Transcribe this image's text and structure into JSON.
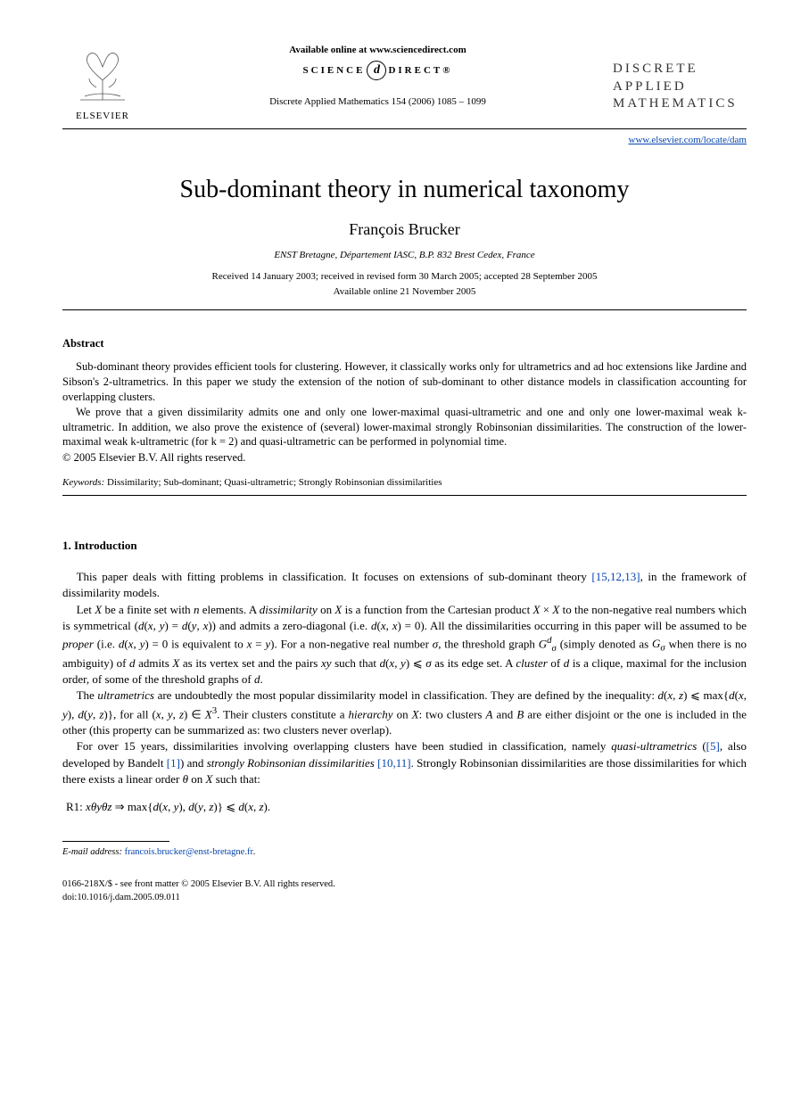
{
  "header": {
    "publisher": "ELSEVIER",
    "available_online": "Available online at www.sciencedirect.com",
    "science_direct_left": "SCIENCE",
    "science_direct_right": "DIRECT®",
    "citation": "Discrete Applied Mathematics 154 (2006) 1085 – 1099",
    "journal_name_l1": "DISCRETE",
    "journal_name_l2": "APPLIED",
    "journal_name_l3": "MATHEMATICS",
    "journal_url": "www.elsevier.com/locate/dam"
  },
  "article": {
    "title": "Sub-dominant theory in numerical taxonomy",
    "author": "François Brucker",
    "affiliation": "ENST Bretagne, Département IASC, B.P. 832 Brest Cedex, France",
    "dates_line1": "Received 14 January 2003; received in revised form 30 March 2005; accepted 28 September 2005",
    "dates_line2": "Available online 21 November 2005"
  },
  "abstract": {
    "heading": "Abstract",
    "p1": "Sub-dominant theory provides efficient tools for clustering. However, it classically works only for ultrametrics and ad hoc extensions like Jardine and Sibson's 2-ultrametrics. In this paper we study the extension of the notion of sub-dominant to other distance models in classification accounting for overlapping clusters.",
    "p2": "We prove that a given dissimilarity admits one and only one lower-maximal quasi-ultrametric and one and only one lower-maximal weak k-ultrametric. In addition, we also prove the existence of (several) lower-maximal strongly Robinsonian dissimilarities. The construction of the lower-maximal weak k-ultrametric (for k = 2) and quasi-ultrametric can be performed in polynomial time.",
    "copyright": "© 2005 Elsevier B.V. All rights reserved."
  },
  "keywords": {
    "label": "Keywords:",
    "text": " Dissimilarity; Sub-dominant; Quasi-ultrametric; Strongly Robinsonian dissimilarities"
  },
  "section1": {
    "heading": "1.  Introduction",
    "p1_a": "This   paper deals with fitting problems in classification. It focuses on extensions of sub-dominant theory ",
    "p1_refs": "[15,12,13]",
    "p1_b": ", in the framework of dissimilarity models.",
    "p2_html": "Let <i>X</i> be a finite set with <i>n</i> elements. A <i>dissimilarity</i> on <i>X</i> is a function from the Cartesian product <i>X</i> × <i>X</i> to the non-negative real numbers which is symmetrical (<i>d</i>(<i>x</i>, <i>y</i>) = <i>d</i>(<i>y</i>, <i>x</i>)) and admits a zero-diagonal (i.e. <i>d</i>(<i>x</i>, <i>x</i>) = 0). All the dissimilarities occurring in this paper will be assumed to be <i>proper</i> (i.e. <i>d</i>(<i>x</i>, <i>y</i>) = 0 is equivalent to <i>x</i> = <i>y</i>). For a non-negative real number <i>σ</i>, the threshold graph <i>G</i><sup><i>d</i></sup><sub><i>σ</i></sub> (simply denoted as <i>G<sub>σ</sub></i> when there is no ambiguity) of <i>d</i> admits <i>X</i> as its vertex set and the pairs <i>xy</i> such that <i>d</i>(<i>x</i>, <i>y</i>) ⩽ <i>σ</i> as its edge set. A <i>cluster</i> of <i>d</i> is a clique, maximal for the inclusion order, of some of the threshold graphs of <i>d</i>.",
    "p3_html": "The <i>ultrametrics</i> are undoubtedly the most popular dissimilarity model in classification. They are defined by the inequality: <i>d</i>(<i>x</i>, <i>z</i>) ⩽ max{<i>d</i>(<i>x</i>, <i>y</i>), <i>d</i>(<i>y</i>, <i>z</i>)}, for all (<i>x</i>, <i>y</i>, <i>z</i>) ∈ <i>X</i><sup>3</sup>. Their clusters constitute a <i>hierarchy</i> on <i>X</i>: two clusters <i>A</i> and <i>B</i> are either disjoint or the one is included in the other (this property can be summarized as: two clusters never overlap).",
    "p4_a": "For over 15 years, dissimilarities involving overlapping clusters have been studied in classification, namely ",
    "p4_i1": "quasi-ultrametrics",
    "p4_b": " (",
    "p4_ref1": "[5]",
    "p4_c": ", also developed by Bandelt ",
    "p4_ref2": "[1]",
    "p4_d": ") and ",
    "p4_i2": "strongly Robinsonian dissimilarities",
    "p4_e": " ",
    "p4_ref3": "[10,11]",
    "p4_f": ". Strongly Robinsonian dissimilarities are those dissimilarities for which there exists a linear order <i>θ</i> on <i>X</i> such that:",
    "r1": "R1:  <i>xθyθz</i> ⇒ max{<i>d</i>(<i>x</i>, <i>y</i>), <i>d</i>(<i>y</i>, <i>z</i>)} ⩽ <i>d</i>(<i>x</i>, <i>z</i>)."
  },
  "footnote": {
    "label": "E-mail address:",
    "email": "francois.brucker@enst-bretagne.fr",
    "tail": "."
  },
  "footer": {
    "line1": "0166-218X/$ - see front matter © 2005 Elsevier B.V. All rights reserved.",
    "line2": "doi:10.1016/j.dam.2005.09.011"
  }
}
